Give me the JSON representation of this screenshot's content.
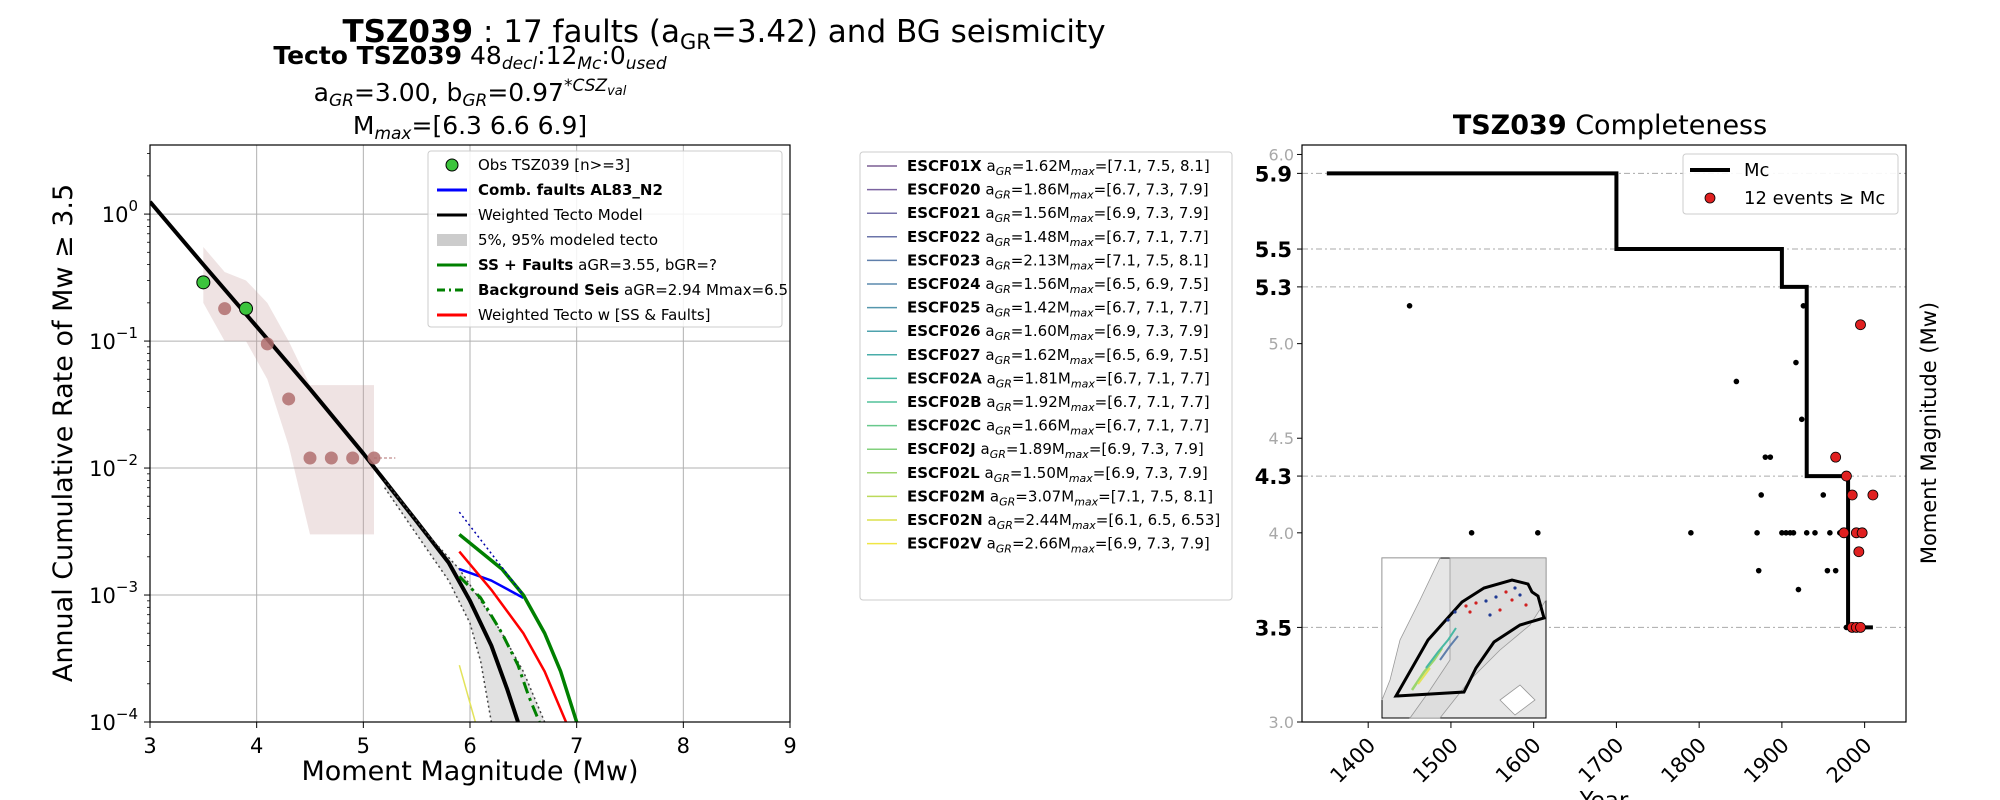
{
  "figure": {
    "suptitle_bold": "TSZ039",
    "suptitle_rest": " : 17 faults (a",
    "suptitle_sub": "GR",
    "suptitle_end": "=3.42) and BG seismicity"
  },
  "chart_data": [
    {
      "type": "line",
      "title_lines": {
        "l1_bold": "Tecto TSZ039",
        "l1_n1": "48",
        "l1_s1": "decl",
        "l1_n2": ":12",
        "l1_s2": "Mc",
        "l1_n3": ":0",
        "l1_s3": "used",
        "l2_a": "a",
        "l2_a_sub": "GR",
        "l2_a_val": "=3.00,  b",
        "l2_b_sub": "GR",
        "l2_b_val": "=0.97",
        "l2_sup": "*CSZ",
        "l2_sup_sub": "val",
        "l3_m": "M",
        "l3_sub": "max",
        "l3_val": "=[6.3 6.6 6.9]"
      },
      "xlabel": "Moment Magnitude (Mw)",
      "ylabel": "Annual Cumulative Rate of Mw  ≥  3.5",
      "xlim": [
        3,
        9
      ],
      "ylim": [
        0.0001,
        3.5
      ],
      "yscale": "log",
      "grid": true,
      "x_ticks": [
        "3",
        "4",
        "5",
        "6",
        "7",
        "8",
        "9"
      ],
      "y_ticks": [
        {
          "base": "10",
          "exp": "0",
          "v": 1
        },
        {
          "base": "10",
          "exp": "−1",
          "v": 0.1
        },
        {
          "base": "10",
          "exp": "−2",
          "v": 0.01
        },
        {
          "base": "10",
          "exp": "−3",
          "v": 0.001
        },
        {
          "base": "10",
          "exp": "−4",
          "v": 0.0001
        }
      ],
      "legend": {
        "placement": "top-right",
        "entries": [
          {
            "kind": "marker",
            "color": "#3cc43c",
            "bold": "",
            "text": "Obs TSZ039 [n>=3]"
          },
          {
            "kind": "line",
            "color": "#0000ff",
            "bold": "Comb. faults AL83_N2",
            "text": ""
          },
          {
            "kind": "line",
            "color": "#000000",
            "bold": "",
            "text": "Weighted Tecto Model"
          },
          {
            "kind": "patch",
            "color": "#cccccc",
            "bold": "",
            "text": "5%, 95% modeled tecto"
          },
          {
            "kind": "line",
            "color": "#008000",
            "bold": "SS + Faults",
            "text": " aGR=3.55,  bGR=?"
          },
          {
            "kind": "dashdot",
            "color": "#008000",
            "bold": "Background Seis",
            "text": " aGR=2.94 Mmax=6.5"
          },
          {
            "kind": "line",
            "color": "#ff0000",
            "bold": "",
            "text": "Weighted Tecto w [SS & Faults]"
          }
        ]
      },
      "obs_green": {
        "color": "#3cc43c",
        "x": [
          3.5,
          3.9
        ],
        "y": [
          0.29,
          0.18
        ]
      },
      "obs_brown": {
        "color": "#b06f6f",
        "x": [
          3.7,
          4.1,
          4.3,
          4.5,
          4.7,
          4.9,
          5.1
        ],
        "y": [
          0.18,
          0.095,
          0.035,
          0.012,
          0.012,
          0.012,
          0.012
        ]
      },
      "obs_band": {
        "color": "#c79a9a",
        "x": [
          3.5,
          3.7,
          3.9,
          4.1,
          4.3,
          4.5,
          4.7,
          4.9,
          5.1
        ],
        "upper": [
          0.55,
          0.35,
          0.3,
          0.2,
          0.1,
          0.045,
          0.045,
          0.045,
          0.045
        ],
        "lower": [
          0.2,
          0.1,
          0.1,
          0.05,
          0.015,
          0.003,
          0.003,
          0.003,
          0.003
        ]
      },
      "series": [
        {
          "name": "Weighted Tecto Model",
          "color": "#000000",
          "style": "solid",
          "width": 4,
          "x": [
            3.0,
            3.5,
            4.0,
            4.5,
            5.0,
            5.5,
            5.8,
            6.0,
            6.2,
            6.35,
            6.45
          ],
          "y": [
            1.25,
            0.4,
            0.13,
            0.042,
            0.013,
            0.0038,
            0.0018,
            0.0009,
            0.0004,
            0.00018,
            0.0001
          ]
        },
        {
          "name": "5%, 95% modeled tecto (upper)",
          "color": "#444444",
          "style": "dotted",
          "width": 1.5,
          "x": [
            5.2,
            5.6,
            5.9,
            6.1,
            6.3,
            6.5,
            6.7
          ],
          "y": [
            0.008,
            0.003,
            0.0016,
            0.0009,
            0.0005,
            0.00025,
            0.0001
          ]
        },
        {
          "name": "5%, 95% modeled tecto (lower)",
          "color": "#444444",
          "style": "dotted",
          "width": 1.5,
          "x": [
            5.2,
            5.5,
            5.8,
            6.0,
            6.1,
            6.2
          ],
          "y": [
            0.007,
            0.003,
            0.0013,
            0.0006,
            0.0003,
            0.0001
          ]
        },
        {
          "name": "Comb. faults AL83_N2",
          "color": "#0000ff",
          "style": "solid",
          "width": 2.5,
          "x": [
            5.9,
            6.2,
            6.5
          ],
          "y": [
            0.0016,
            0.0013,
            0.00095
          ]
        },
        {
          "name": "SS + Faults",
          "color": "#008000",
          "style": "solid",
          "width": 3.5,
          "x": [
            5.9,
            6.3,
            6.5,
            6.7,
            6.85,
            7.0
          ],
          "y": [
            0.003,
            0.0016,
            0.001,
            0.0005,
            0.00025,
            0.0001
          ]
        },
        {
          "name": "Background Seis",
          "color": "#008000",
          "style": "dashdot",
          "width": 3,
          "x": [
            5.9,
            6.1,
            6.3,
            6.45,
            6.55,
            6.65
          ],
          "y": [
            0.0014,
            0.00095,
            0.0005,
            0.00028,
            0.00016,
            0.0001
          ]
        },
        {
          "name": "Weighted Tecto w [SS & Faults]",
          "color": "#ff0000",
          "style": "solid",
          "width": 2.5,
          "x": [
            5.9,
            6.2,
            6.5,
            6.7,
            6.9
          ],
          "y": [
            0.0022,
            0.0011,
            0.0005,
            0.00025,
            0.0001
          ]
        },
        {
          "name": "ESCF02N fault",
          "color": "#e3e35a",
          "style": "solid",
          "width": 1.5,
          "x": [
            5.9,
            6.05
          ],
          "y": [
            0.00028,
            0.0001
          ]
        },
        {
          "name": "dotted blue",
          "color": "#0000aa",
          "style": "dotted",
          "width": 1.5,
          "x": [
            5.9,
            6.5
          ],
          "y": [
            0.0045,
            0.001
          ]
        }
      ]
    },
    {
      "type": "table",
      "legend_entries": [
        {
          "name": "ESCF01X",
          "agr": "1.62",
          "mmax": "=[7.1, 7.5, 8.1]",
          "color": "#7b5f93"
        },
        {
          "name": "ESCF020",
          "agr": "1.86",
          "mmax": "=[6.7, 7.3, 7.9]",
          "color": "#7b63a0"
        },
        {
          "name": "ESCF021",
          "agr": "1.56",
          "mmax": "=[6.9, 7.3, 7.9]",
          "color": "#7570a8"
        },
        {
          "name": "ESCF022",
          "agr": "1.48",
          "mmax": "=[6.7, 7.1, 7.7]",
          "color": "#6b74a9"
        },
        {
          "name": "ESCF023",
          "agr": "2.13",
          "mmax": "=[7.1, 7.5, 8.1]",
          "color": "#5f7fab"
        },
        {
          "name": "ESCF024",
          "agr": "1.56",
          "mmax": "=[6.5, 6.9, 7.5]",
          "color": "#5c8aae"
        },
        {
          "name": "ESCF025",
          "agr": "1.42",
          "mmax": "=[6.7, 7.1, 7.7]",
          "color": "#5596ad"
        },
        {
          "name": "ESCF026",
          "agr": "1.60",
          "mmax": "=[6.9, 7.3, 7.9]",
          "color": "#4ea2ad"
        },
        {
          "name": "ESCF027",
          "agr": "1.62",
          "mmax": "=[6.5, 6.9, 7.5]",
          "color": "#49adaa"
        },
        {
          "name": "ESCF02A",
          "agr": "1.81",
          "mmax": "=[6.7, 7.1, 7.7]",
          "color": "#48b8a3"
        },
        {
          "name": "ESCF02B",
          "agr": "1.92",
          "mmax": "=[6.7, 7.1, 7.7]",
          "color": "#52c29a"
        },
        {
          "name": "ESCF02C",
          "agr": "1.66",
          "mmax": "=[6.7, 7.1, 7.7]",
          "color": "#68c98c"
        },
        {
          "name": "ESCF02J",
          "agr": "1.89",
          "mmax": "=[6.9, 7.3, 7.9]",
          "color": "#82d07c"
        },
        {
          "name": "ESCF02L",
          "agr": "1.50",
          "mmax": "=[6.9, 7.3, 7.9]",
          "color": "#9dd66c"
        },
        {
          "name": "ESCF02M",
          "agr": "3.07",
          "mmax": "=[7.1, 7.5, 8.1]",
          "color": "#bcda5a"
        },
        {
          "name": "ESCF02N",
          "agr": "2.44",
          "mmax": "=[6.1, 6.5, 6.53]",
          "color": "#dbe04b"
        },
        {
          "name": "ESCF02V",
          "agr": "2.66",
          "mmax": "=[6.9, 7.3, 7.9]",
          "color": "#f0e644"
        }
      ]
    },
    {
      "type": "scatter",
      "title_bold": "TSZ039",
      "title_rest": " Completeness",
      "xlabel": "Year",
      "ylabel": "Moment Magnitude (Mw)",
      "xlim": [
        1320,
        2050
      ],
      "ylim": [
        3.0,
        6.05
      ],
      "grid": false,
      "x_ticks": [
        1400,
        1500,
        1600,
        1700,
        1800,
        1900,
        2000
      ],
      "y_ticks_minor": [
        "3.0",
        "4.0",
        "4.5",
        "5.0",
        "6.0"
      ],
      "y_ticks_minor_values": [
        3.0,
        4.0,
        4.5,
        5.0,
        6.0
      ],
      "y_ticks_bold": [
        "3.5",
        "4.3",
        "5.3",
        "5.5",
        "5.9"
      ],
      "y_ticks_bold_values": [
        3.5,
        4.3,
        5.3,
        5.5,
        5.9
      ],
      "mc_step": {
        "color": "#000000",
        "x": [
          1350,
          1700,
          1700,
          1900,
          1900,
          1930,
          1930,
          1980,
          1980,
          2010
        ],
        "y": [
          5.9,
          5.9,
          5.5,
          5.5,
          5.3,
          5.3,
          4.3,
          4.3,
          3.5,
          3.5
        ]
      },
      "legend": {
        "placement": "top-right",
        "entries": [
          {
            "kind": "line",
            "color": "#000000",
            "text": "Mc"
          },
          {
            "kind": "marker",
            "color": "#e02020",
            "text": "12 events  ≥  Mc"
          }
        ]
      },
      "events_black": [
        [
          1450,
          5.2
        ],
        [
          1525,
          4.0
        ],
        [
          1605,
          4.0
        ],
        [
          1790,
          4.0
        ],
        [
          1845,
          4.8
        ],
        [
          1870,
          4.0
        ],
        [
          1872,
          3.8
        ],
        [
          1875,
          4.2
        ],
        [
          1880,
          4.4
        ],
        [
          1886,
          4.4
        ],
        [
          1900,
          4.0
        ],
        [
          1905,
          4.0
        ],
        [
          1910,
          4.0
        ],
        [
          1914,
          4.0
        ],
        [
          1917,
          4.9
        ],
        [
          1920,
          3.7
        ],
        [
          1924,
          4.6
        ],
        [
          1926,
          5.2
        ],
        [
          1930,
          4.0
        ],
        [
          1940,
          4.0
        ],
        [
          1950,
          4.2
        ],
        [
          1955,
          3.8
        ],
        [
          1958,
          4.0
        ],
        [
          1965,
          3.8
        ],
        [
          1970,
          4.0
        ],
        [
          1978,
          3.5
        ],
        [
          1982,
          3.5
        ],
        [
          1988,
          3.5
        ]
      ],
      "events_red": [
        [
          1995,
          5.1
        ],
        [
          1965,
          4.4
        ],
        [
          1985,
          4.2
        ],
        [
          2010,
          4.2
        ],
        [
          1990,
          4.0
        ],
        [
          1975,
          4.0
        ],
        [
          1997,
          4.0
        ],
        [
          1993,
          3.9
        ],
        [
          1985,
          3.5
        ],
        [
          1990,
          3.5
        ],
        [
          1995,
          3.5
        ],
        [
          1978,
          4.3
        ]
      ]
    }
  ]
}
